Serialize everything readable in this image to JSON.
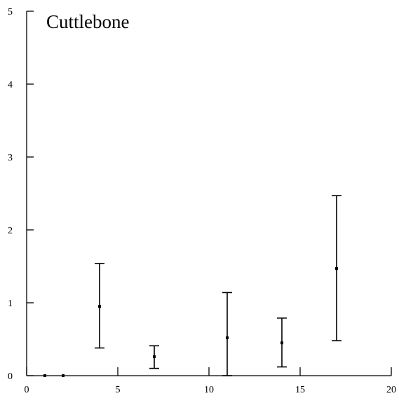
{
  "chart_data": {
    "type": "scatter",
    "title": "Cuttlebone",
    "xlabel": "",
    "ylabel": "",
    "xlim": [
      0,
      20
    ],
    "ylim": [
      0,
      5
    ],
    "x_ticks": [
      0,
      5,
      10,
      15,
      20
    ],
    "y_ticks": [
      0,
      1,
      2,
      3,
      4,
      5
    ],
    "grid": false,
    "legend": "none",
    "series": [
      {
        "points": [
          {
            "x": 1,
            "y": 0.0,
            "low": 0.0,
            "high": 0.0
          },
          {
            "x": 2,
            "y": 0.0,
            "low": 0.0,
            "high": 0.0
          },
          {
            "x": 4,
            "y": 0.95,
            "low": 0.38,
            "high": 1.54
          },
          {
            "x": 7,
            "y": 0.26,
            "low": 0.1,
            "high": 0.41
          },
          {
            "x": 11,
            "y": 0.52,
            "low": 0.0,
            "high": 1.14
          },
          {
            "x": 14,
            "y": 0.45,
            "low": 0.12,
            "high": 0.79
          },
          {
            "x": 17,
            "y": 1.47,
            "low": 0.48,
            "high": 2.47
          }
        ]
      }
    ]
  }
}
